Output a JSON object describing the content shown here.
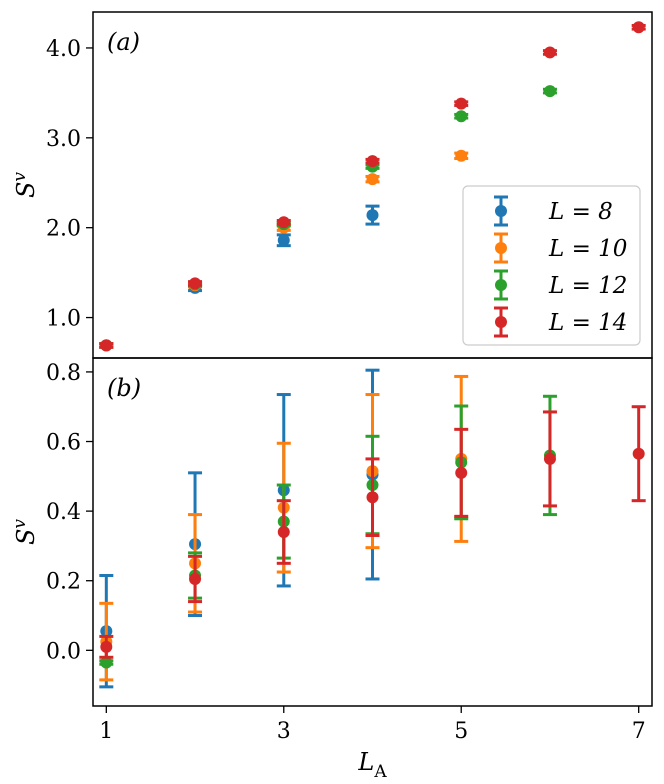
{
  "chart_data": [
    {
      "type": "scatter",
      "panel_label": "(a)",
      "ylabel": "S^v",
      "xlabel": "",
      "xlim": [
        0.85,
        7.15
      ],
      "ylim": [
        0.55,
        4.4
      ],
      "x_ticks": [],
      "y_ticks": [
        1.0,
        2.0,
        3.0,
        4.0
      ],
      "y_tick_labels": [
        "1.0",
        "2.0",
        "3.0",
        "4.0"
      ],
      "legend": {
        "position": "lower-right"
      },
      "series": [
        {
          "name": "L = 8",
          "label_var": "L",
          "label_val": "8",
          "color": "#1f77b4",
          "x": [
            1,
            2,
            3,
            4
          ],
          "y": [
            0.69,
            1.33,
            1.86,
            2.14
          ],
          "err": [
            0.02,
            0.03,
            0.06,
            0.1
          ]
        },
        {
          "name": "L = 10",
          "label_var": "L",
          "label_val": "10",
          "color": "#ff7f0e",
          "x": [
            1,
            2,
            3,
            4,
            5
          ],
          "y": [
            0.69,
            1.36,
            2.0,
            2.54,
            2.8
          ],
          "err": [
            0.02,
            0.02,
            0.03,
            0.03,
            0.03
          ]
        },
        {
          "name": "L = 12",
          "label_var": "L",
          "label_val": "12",
          "color": "#2ca02c",
          "x": [
            1,
            2,
            3,
            4,
            5,
            6
          ],
          "y": [
            0.69,
            1.37,
            2.04,
            2.68,
            3.24,
            3.52
          ],
          "err": [
            0.02,
            0.02,
            0.02,
            0.02,
            0.02,
            0.02
          ]
        },
        {
          "name": "L = 14",
          "label_var": "L",
          "label_val": "14",
          "color": "#d62728",
          "x": [
            1,
            2,
            3,
            4,
            5,
            6,
            7
          ],
          "y": [
            0.69,
            1.38,
            2.06,
            2.74,
            3.38,
            3.95,
            4.23
          ],
          "err": [
            0.02,
            0.02,
            0.02,
            0.02,
            0.02,
            0.02,
            0.02
          ]
        }
      ]
    },
    {
      "type": "scatter",
      "panel_label": "(b)",
      "ylabel": "S^v",
      "xlabel": "L_A",
      "xlim": [
        0.85,
        7.15
      ],
      "ylim": [
        -0.16,
        0.84
      ],
      "x_ticks": [
        1,
        3,
        5,
        7
      ],
      "x_tick_labels": [
        "1",
        "3",
        "5",
        "7"
      ],
      "y_ticks": [
        0.0,
        0.2,
        0.4,
        0.6,
        0.8
      ],
      "y_tick_labels": [
        "0.0",
        "0.2",
        "0.4",
        "0.6",
        "0.8"
      ],
      "series": [
        {
          "name": "L = 8",
          "color": "#1f77b4",
          "x": [
            1,
            2,
            3,
            4
          ],
          "y": [
            0.055,
            0.305,
            0.46,
            0.505
          ],
          "err": [
            0.16,
            0.205,
            0.275,
            0.3
          ]
        },
        {
          "name": "L = 10",
          "color": "#ff7f0e",
          "x": [
            1,
            2,
            3,
            4,
            5
          ],
          "y": [
            0.025,
            0.25,
            0.41,
            0.515,
            0.55
          ],
          "err": [
            0.11,
            0.14,
            0.185,
            0.22,
            0.237
          ]
        },
        {
          "name": "L = 12",
          "color": "#2ca02c",
          "x": [
            1,
            2,
            3,
            4,
            5,
            6
          ],
          "y": [
            -0.035,
            0.215,
            0.37,
            0.475,
            0.54,
            0.56
          ],
          "err": [
            0.005,
            0.065,
            0.105,
            0.14,
            0.162,
            0.17
          ]
        },
        {
          "name": "L = 14",
          "color": "#d62728",
          "x": [
            1,
            2,
            3,
            4,
            5,
            6,
            7
          ],
          "y": [
            0.01,
            0.205,
            0.34,
            0.44,
            0.51,
            0.55,
            0.565
          ],
          "err": [
            0.03,
            0.065,
            0.09,
            0.11,
            0.125,
            0.135,
            0.135
          ]
        }
      ]
    }
  ]
}
